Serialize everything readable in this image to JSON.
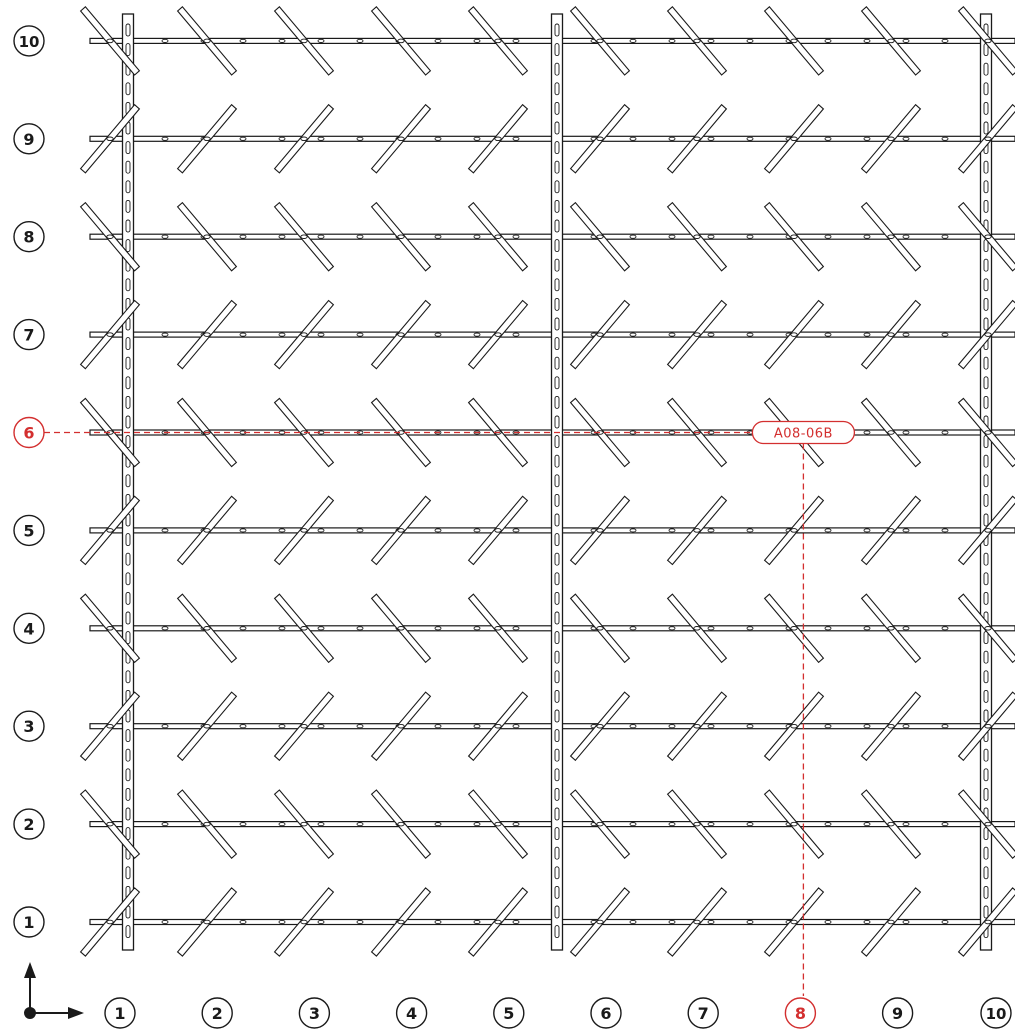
{
  "rows": [
    {
      "label": "1",
      "orientation": "up"
    },
    {
      "label": "2",
      "orientation": "down"
    },
    {
      "label": "3",
      "orientation": "up"
    },
    {
      "label": "4",
      "orientation": "down"
    },
    {
      "label": "5",
      "orientation": "up"
    },
    {
      "label": "6",
      "orientation": "down"
    },
    {
      "label": "7",
      "orientation": "up"
    },
    {
      "label": "8",
      "orientation": "down"
    },
    {
      "label": "9",
      "orientation": "up"
    },
    {
      "label": "10",
      "orientation": "down"
    }
  ],
  "columns": [
    "1",
    "2",
    "3",
    "4",
    "5",
    "6",
    "7",
    "8",
    "9",
    "10"
  ],
  "selection": {
    "row": "6",
    "column": "8",
    "location_code": "A08-06B"
  },
  "colors": {
    "line": "#1a1a1a",
    "highlight": "#d32f2f",
    "background": "#ffffff"
  },
  "icons": {
    "origin": "axis-origin-icon",
    "x_arrow": "x-axis-arrow-icon",
    "y_arrow": "y-axis-arrow-icon"
  }
}
